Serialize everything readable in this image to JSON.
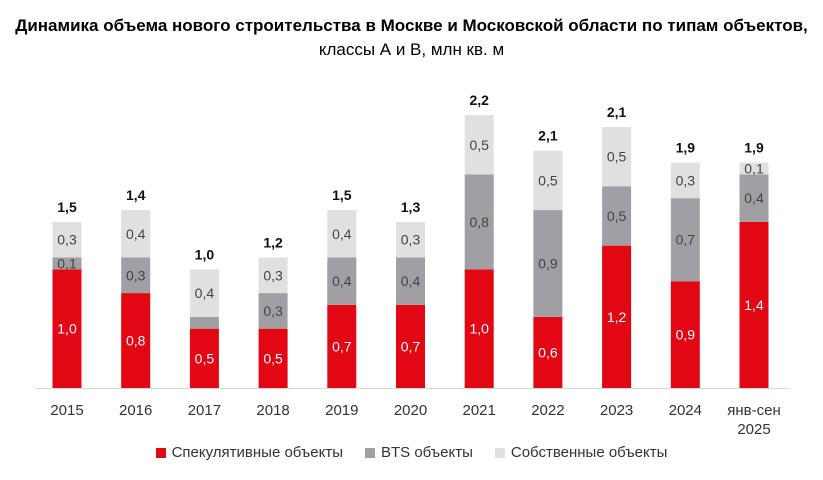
{
  "chart_data": {
    "type": "stacked-bar",
    "title_bold": "Динамика объема нового строительства в Москве и Московской области по типам объектов,",
    "title_normal": " классы А и В, млн кв. м",
    "categories": [
      "2015",
      "2016",
      "2017",
      "2018",
      "2019",
      "2020",
      "2021",
      "2022",
      "2023",
      "2024",
      "янв-сен 2025"
    ],
    "series": [
      {
        "name": "Спекулятивные объекты",
        "color": "#e30613",
        "values": [
          1.0,
          0.8,
          0.5,
          0.5,
          0.7,
          0.7,
          1.0,
          0.6,
          1.2,
          0.9,
          1.4
        ],
        "labels": [
          "1,0",
          "0,8",
          "0,5",
          "0,5",
          "0,7",
          "0,7",
          "1,0",
          "0,6",
          "1,2",
          "0,9",
          "1,4"
        ]
      },
      {
        "name": "BTS объекты",
        "color": "#a0a0a4",
        "values": [
          0.1,
          0.3,
          0.1,
          0.3,
          0.4,
          0.4,
          0.8,
          0.9,
          0.5,
          0.7,
          0.4
        ],
        "labels": [
          "0,1",
          "0,3",
          "",
          "0,3",
          "0,4",
          "0,4",
          "0,8",
          "0,9",
          "0,5",
          "0,7",
          "0,4"
        ]
      },
      {
        "name": "Собственные объекты",
        "color": "#e0e0e0",
        "values": [
          0.3,
          0.4,
          0.4,
          0.3,
          0.4,
          0.3,
          0.5,
          0.5,
          0.5,
          0.3,
          0.1
        ],
        "labels": [
          "0,3",
          "0,4",
          "0,4",
          "0,3",
          "0,4",
          "0,3",
          "0,5",
          "0,5",
          "0,5",
          "0,3",
          "0,1"
        ]
      }
    ],
    "totals": [
      "1,5",
      "1,4",
      "1,0",
      "1,2",
      "1,5",
      "1,3",
      "2,2",
      "2,1",
      "2,1",
      "1,9",
      "1,9"
    ],
    "ylim": [
      0,
      2.2
    ],
    "grid": false,
    "legend_position": "bottom"
  }
}
